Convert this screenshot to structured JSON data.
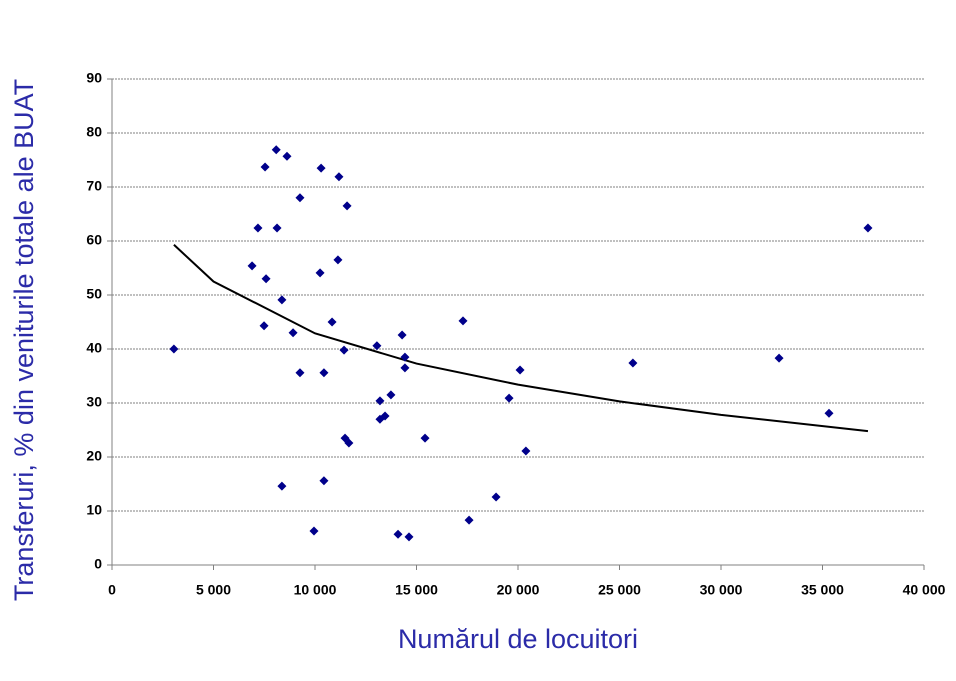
{
  "chart_data": {
    "type": "scatter",
    "xlabel": "Numărul de locuitori",
    "ylabel": "Transferuri, % din veniturile totale ale BUAT",
    "series": [
      {
        "color": "#00008b",
        "x": [
          3050,
          7540,
          8090,
          8620,
          7190,
          8130,
          9260,
          10300,
          11180,
          11580,
          6900,
          7590,
          8370,
          7490,
          8920,
          10250,
          11130,
          10840,
          11430,
          9260,
          10440,
          13050,
          14290,
          14430,
          14430,
          17290,
          13200,
          13200,
          13450,
          13740,
          11480,
          11670,
          15420,
          8370,
          10440,
          9950,
          14090,
          14630,
          17590,
          18920,
          19560,
          20100,
          20390,
          25660,
          32860,
          35320,
          37240
        ],
        "values": [
          40.0,
          73.7,
          76.9,
          75.7,
          62.4,
          62.4,
          68.0,
          73.5,
          71.9,
          66.5,
          55.4,
          53.0,
          49.1,
          44.3,
          43.0,
          54.1,
          56.5,
          45.0,
          39.8,
          35.6,
          35.6,
          40.6,
          42.6,
          36.5,
          38.5,
          45.2,
          30.4,
          27.0,
          27.6,
          31.5,
          23.5,
          22.6,
          23.5,
          14.6,
          15.6,
          6.3,
          5.7,
          5.2,
          8.3,
          12.6,
          30.9,
          36.1,
          21.1,
          37.4,
          38.3,
          28.1,
          62.4
        ]
      }
    ],
    "trendline": {
      "color": "#000000",
      "x": [
        3050,
        5000,
        10000,
        15000,
        20000,
        25000,
        30000,
        37240
      ],
      "values": [
        59.3,
        52.5,
        42.9,
        37.3,
        33.4,
        30.3,
        27.8,
        24.8
      ]
    },
    "xlim": [
      0,
      40000
    ],
    "xticks": [
      0,
      {
        "value": 5000,
        "label": "5 000"
      },
      {
        "value": 10000,
        "label": "10 000"
      },
      {
        "value": 15000,
        "label": "15 000"
      },
      {
        "value": 20000,
        "label": "20 000"
      },
      {
        "value": 25000,
        "label": "25 000"
      },
      {
        "value": 30000,
        "label": "30 000"
      },
      {
        "value": 35000,
        "label": "35 000"
      },
      {
        "value": 40000,
        "label": "40 000"
      }
    ],
    "ylim": [
      0,
      90
    ],
    "yticks": [
      0,
      10,
      20,
      30,
      40,
      50,
      60,
      70,
      80,
      90
    ],
    "grid": true
  }
}
